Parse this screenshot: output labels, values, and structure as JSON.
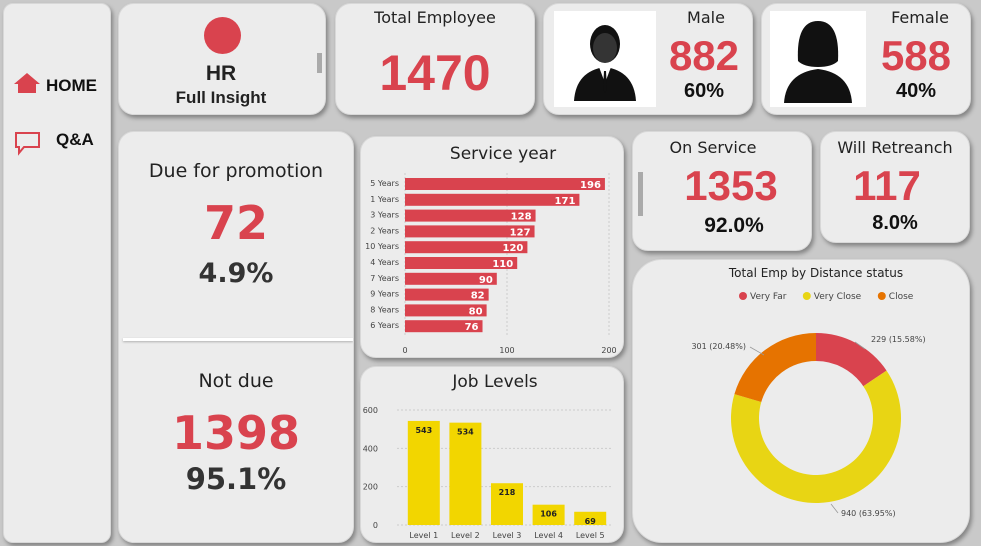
{
  "nav": {
    "home_label": "HOME",
    "qa_label": "Q&A"
  },
  "header": {
    "title": "HR",
    "subtitle": "Full Insight"
  },
  "total": {
    "label": "Total Employee",
    "value": "1470"
  },
  "male": {
    "label": "Male",
    "value": "882",
    "pct": "60%"
  },
  "female": {
    "label": "Female",
    "value": "588",
    "pct": "40%"
  },
  "promotion": {
    "due_label": "Due for promotion",
    "due_value": "72",
    "due_pct": "4.9%",
    "not_label": "Not due",
    "not_value": "1398",
    "not_pct": "95.1%"
  },
  "on_service": {
    "label": "On Service",
    "value": "1353",
    "pct": "92.0%"
  },
  "retrench": {
    "label": "Will Retreanch",
    "value": "117",
    "pct": "8.0%"
  },
  "colors": {
    "accent_red": "#d9434e",
    "bar_yellow": "#f2d600",
    "donut_yellow": "#e8d514",
    "donut_orange": "#e67300"
  },
  "icons": {
    "home": "home-icon",
    "qa": "chat-icon",
    "logo": "red-circle-icon",
    "male": "male-avatar-icon",
    "female": "female-avatar-icon"
  },
  "chart_data": [
    {
      "type": "bar",
      "orientation": "horizontal",
      "title": "Service year",
      "categories": [
        "5 Years",
        "1 Years",
        "3 Years",
        "2 Years",
        "10 Years",
        "4 Years",
        "7 Years",
        "9 Years",
        "8 Years",
        "6 Years"
      ],
      "values": [
        196,
        171,
        128,
        127,
        120,
        110,
        90,
        82,
        80,
        76
      ],
      "xlim": [
        0,
        200
      ],
      "ticks": [
        "0",
        "100",
        "200"
      ],
      "grid": true,
      "color": "#d9434e"
    },
    {
      "type": "bar",
      "title": "Job Levels",
      "categories": [
        "Level 1",
        "Level 2",
        "Level 3",
        "Level 4",
        "Level 5"
      ],
      "values": [
        543,
        534,
        218,
        106,
        69
      ],
      "ylim": [
        0,
        600
      ],
      "ticks": [
        "0",
        "200",
        "400",
        "600"
      ],
      "grid": true,
      "color": "#f2d600"
    },
    {
      "type": "pie",
      "donut": true,
      "title": "Total Emp by Distance status",
      "legend_position": "top",
      "series": [
        {
          "name": "Very Far",
          "value": 229,
          "label": "229 (15.58%)",
          "color": "#d9434e"
        },
        {
          "name": "Very Close",
          "value": 940,
          "label": "940 (63.95%)",
          "color": "#e8d514"
        },
        {
          "name": "Close",
          "value": 301,
          "label": "301 (20.48%)",
          "color": "#e67300"
        }
      ]
    }
  ]
}
